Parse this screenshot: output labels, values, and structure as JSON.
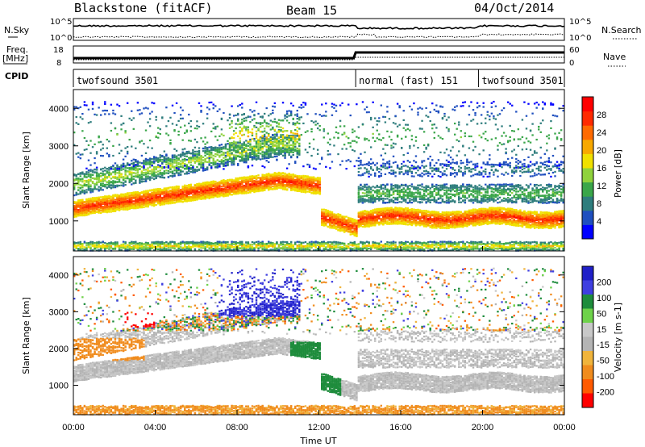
{
  "header": {
    "title": "Blackstone (fitACF)",
    "beam": "Beam 15",
    "date": "04/Oct/2014"
  },
  "strips": {
    "nsky_label": "N.Sky",
    "nsearch_label": "N.Search",
    "freq_label_1": "Freq.",
    "freq_label_2": "[MHz]",
    "nave_label": "Nave",
    "cpid_label": "CPID",
    "noise_ticks_left": [
      "10^5",
      "10^0"
    ],
    "noise_ticks_right": [
      "10^5",
      "10^0"
    ],
    "freq_ticks": [
      "18",
      "8"
    ],
    "nave_ticks": [
      "60",
      "0"
    ],
    "cpid_segments": [
      {
        "start_hour": 0,
        "end_hour": 13.8,
        "label": "twofsound 3501"
      },
      {
        "start_hour": 13.8,
        "end_hour": 19.8,
        "label": "normal (fast) 151"
      },
      {
        "start_hour": 19.8,
        "end_hour": 24,
        "label": "twofsound 3501"
      }
    ]
  },
  "colors": {
    "power_scale": [
      "#0000ff",
      "#1f4fbf",
      "#2e7d7d",
      "#3aa64a",
      "#8fd23c",
      "#f0e000",
      "#f7a800",
      "#ff6a00",
      "#ff2a00",
      "#ff0000"
    ],
    "velocity_scale": [
      "#2020c8",
      "#3f3fe0",
      "#1e8c3c",
      "#6ed24a",
      "#c8c8c8",
      "#b4b4b4",
      "#f0b43c",
      "#f08c1e",
      "#ff5a00",
      "#ff0000"
    ]
  },
  "chart_data": [
    {
      "type": "heatmap",
      "name": "power",
      "ylabel": "Slant Range [km]",
      "xlim": [
        0,
        24
      ],
      "ylim": [
        200,
        4500
      ],
      "yticks": [
        1000,
        2000,
        3000,
        4000
      ],
      "colorbar_label": "Power [dB]",
      "colorbar_ticks": [
        "4",
        "8",
        "12",
        "16",
        "20",
        "24",
        "28"
      ],
      "colorbar_range": [
        0,
        32
      ]
    },
    {
      "type": "heatmap",
      "name": "velocity",
      "xlabel": "Time UT",
      "ylabel": "Slant Range [km]",
      "xlim": [
        0,
        24
      ],
      "ylim": [
        200,
        4500
      ],
      "xticks": [
        "00:00",
        "04:00",
        "08:00",
        "12:00",
        "16:00",
        "20:00",
        "00:00"
      ],
      "yticks": [
        1000,
        2000,
        3000,
        4000
      ],
      "colorbar_label": "Velocity [m s-1]",
      "colorbar_ticks": [
        "200",
        "100",
        "50",
        "15",
        "-15",
        "-50",
        "-100",
        "-200"
      ]
    }
  ]
}
